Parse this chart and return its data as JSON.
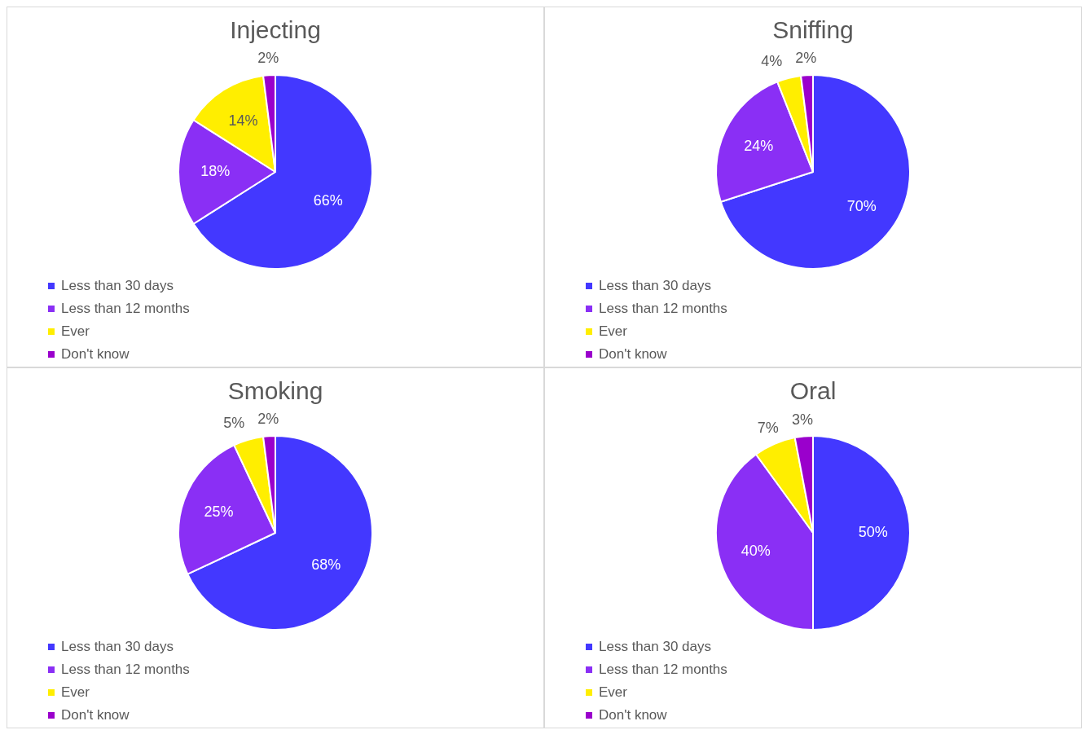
{
  "chart_data": [
    {
      "type": "pie",
      "title": "Injecting",
      "categories": [
        "Less than 30 days",
        "Less than 12 months",
        "Ever",
        "Don't know"
      ],
      "values": [
        66,
        18,
        14,
        2
      ],
      "value_labels": [
        "66%",
        "18%",
        "14%",
        "2%"
      ],
      "colors": [
        "#4338ff",
        "#8a2ff5",
        "#ffee00",
        "#9a00cc"
      ],
      "legend": "bottom left"
    },
    {
      "type": "pie",
      "title": "Sniffing",
      "categories": [
        "Less than 30 days",
        "Less than 12 months",
        "Ever",
        "Don't know"
      ],
      "values": [
        70,
        24,
        4,
        2
      ],
      "value_labels": [
        "70%",
        "24%",
        "4%",
        "2%"
      ],
      "colors": [
        "#4338ff",
        "#8a2ff5",
        "#ffee00",
        "#9a00cc"
      ],
      "legend": "bottom left"
    },
    {
      "type": "pie",
      "title": "Smoking",
      "categories": [
        "Less than 30 days",
        "Less than 12 months",
        "Ever",
        "Don't know"
      ],
      "values": [
        68,
        25,
        5,
        2
      ],
      "value_labels": [
        "68%",
        "25%",
        "5%",
        "2%"
      ],
      "colors": [
        "#4338ff",
        "#8a2ff5",
        "#ffee00",
        "#9a00cc"
      ],
      "legend": "bottom left"
    },
    {
      "type": "pie",
      "title": "Oral",
      "categories": [
        "Less than 30 days",
        "Less than 12 months",
        "Ever",
        "Don't know"
      ],
      "values": [
        50,
        40,
        7,
        3
      ],
      "value_labels": [
        "50%",
        "40%",
        "7%",
        "3%"
      ],
      "colors": [
        "#4338ff",
        "#8a2ff5",
        "#ffee00",
        "#9a00cc"
      ],
      "legend": "bottom left"
    }
  ]
}
